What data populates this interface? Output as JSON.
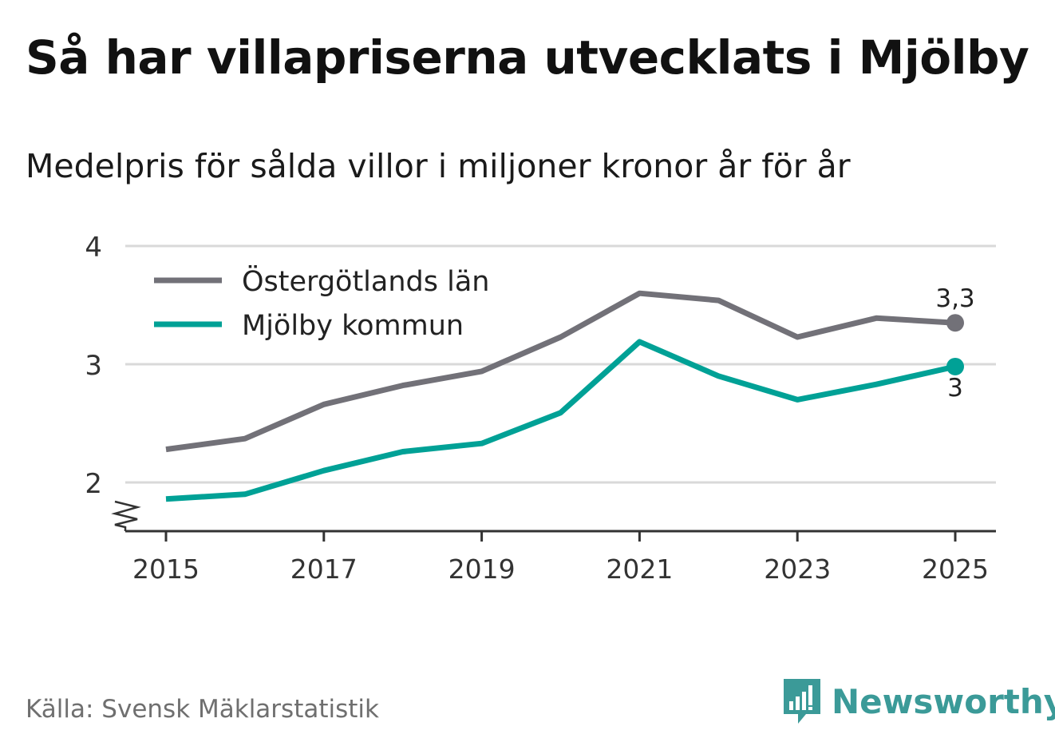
{
  "title": "Så har villapriserna utvecklats i Mjölby",
  "subtitle": "Medelpris för sålda villor i miljoner kronor år för år",
  "source": "Källa: Svensk Mäklarstatistik",
  "brand": {
    "name": "Newsworthy",
    "logo_icon": "bar-chart-speech-bubble-icon",
    "color": "#3b9a98"
  },
  "colors": {
    "gray_series": "#727178",
    "teal_series": "#00a196",
    "grid": "#d9d9d9",
    "axis": "#333333"
  },
  "chart_data": {
    "type": "line",
    "title": "Så har villapriserna utvecklats i Mjölby",
    "subtitle": "Medelpris för sålda villor i miljoner kronor år för år",
    "xlabel": "",
    "ylabel": "",
    "x": [
      2015,
      2016,
      2017,
      2018,
      2019,
      2020,
      2021,
      2022,
      2023,
      2024,
      2025
    ],
    "xticks": [
      "2015",
      "2017",
      "2019",
      "2021",
      "2023",
      "2025"
    ],
    "yticks": [
      "2",
      "3",
      "4"
    ],
    "ylim": [
      1.6,
      4
    ],
    "y_axis_break": true,
    "grid": true,
    "legend_position": "top-left",
    "series": [
      {
        "name": "Östergötlands län",
        "color": "#727178",
        "values": [
          2.28,
          2.37,
          2.66,
          2.82,
          2.94,
          3.23,
          3.6,
          3.54,
          3.23,
          3.39,
          3.35
        ],
        "end_label": "3,3"
      },
      {
        "name": "Mjölby kommun",
        "color": "#00a196",
        "values": [
          1.86,
          1.9,
          2.1,
          2.26,
          2.33,
          2.59,
          3.19,
          2.9,
          2.7,
          2.83,
          2.98
        ],
        "end_label": "3"
      }
    ]
  }
}
